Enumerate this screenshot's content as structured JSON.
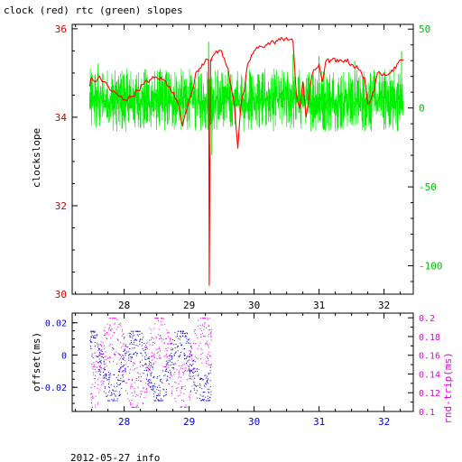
{
  "chart_data": [
    {
      "type": "line",
      "title": "clock (red) rtc (green) slopes",
      "ylabel": "clockslope",
      "x_ticks": [
        "28",
        "29",
        "30",
        "31",
        "32"
      ],
      "xlim": [
        27.2,
        32.45
      ],
      "ylim_left": [
        30,
        36.1
      ],
      "ylim_right": [
        -118,
        53
      ],
      "y_left_ticks": [
        "30",
        "32",
        "34",
        "36"
      ],
      "y_right_ticks": [
        "-100",
        "-50",
        "0",
        "50"
      ],
      "colors": {
        "axis": "#000000",
        "left_ticks": "#cc0000",
        "right_ticks": "#00bb00"
      },
      "series": [
        {
          "color": "#ff0000",
          "axis": "left",
          "x": [
            27.47,
            27.5,
            27.55,
            27.6,
            27.7,
            27.8,
            27.9,
            28.0,
            28.1,
            28.2,
            28.3,
            28.4,
            28.5,
            28.6,
            28.7,
            28.8,
            28.85,
            28.9,
            28.95,
            29.0,
            29.05,
            29.1,
            29.2,
            29.3,
            29.31,
            29.33,
            29.35,
            29.4,
            29.5,
            29.6,
            29.7,
            29.75,
            29.8,
            29.85,
            29.9,
            30.0,
            30.1,
            30.2,
            30.3,
            30.4,
            30.5,
            30.6,
            30.65,
            30.7,
            30.75,
            30.8,
            30.85,
            30.9,
            31.0,
            31.05,
            31.1,
            31.2,
            31.3,
            31.4,
            31.5,
            31.6,
            31.7,
            31.75,
            31.8,
            31.85,
            31.9,
            32.0,
            32.1,
            32.2,
            32.3
          ],
          "values": [
            34.7,
            34.9,
            34.8,
            34.9,
            34.8,
            34.6,
            34.5,
            34.4,
            34.45,
            34.6,
            34.75,
            34.85,
            34.9,
            34.85,
            34.7,
            34.4,
            34.2,
            33.8,
            34.1,
            34.4,
            34.6,
            35.0,
            35.2,
            35.3,
            30.2,
            35.3,
            35.35,
            35.45,
            35.5,
            35.1,
            34.2,
            33.3,
            34.3,
            34.6,
            35.2,
            35.5,
            35.6,
            35.65,
            35.7,
            35.75,
            35.8,
            35.7,
            34.5,
            34.2,
            34.8,
            34.0,
            34.5,
            35.0,
            35.2,
            34.8,
            35.25,
            35.3,
            35.25,
            35.3,
            35.2,
            35.1,
            34.9,
            34.3,
            34.4,
            34.6,
            35.0,
            35.0,
            35.0,
            35.2,
            35.3
          ]
        },
        {
          "color": "#00ee00",
          "axis": "right",
          "x_range": [
            27.47,
            32.3
          ],
          "values_band": [
            -15,
            25
          ],
          "spikes": [
            {
              "x": 27.6,
              "value": 28
            },
            {
              "x": 29.3,
              "value": 42
            },
            {
              "x": 29.35,
              "value": -30
            },
            {
              "x": 30.6,
              "value": 34
            },
            {
              "x": 31.0,
              "value": 33
            },
            {
              "x": 31.55,
              "value": 30
            },
            {
              "x": 32.27,
              "value": 36
            }
          ]
        }
      ]
    },
    {
      "type": "scatter",
      "ylabel_left": "offset(ms)",
      "ylabel_right": "rnd-trip(ms)",
      "x_ticks": [
        "28",
        "29",
        "30",
        "31",
        "32"
      ],
      "xlim": [
        27.2,
        32.45
      ],
      "ylim_left": [
        -0.035,
        0.026
      ],
      "ylim_right": [
        0.1,
        0.205
      ],
      "y_left_ticks": [
        "0.02",
        "0",
        "-0.02"
      ],
      "y_right_ticks": [
        "0.2",
        "0.18",
        "0.16",
        "0.14",
        "0.12",
        "0.1"
      ],
      "x_range_data": [
        27.47,
        29.33
      ],
      "colors": {
        "offset": "#0000cc",
        "rnd_trip": "#dd00dd"
      },
      "series": [
        {
          "name": "offset(ms)",
          "color": "#0000cc",
          "axis": "left",
          "band": [
            -0.028,
            0.015
          ]
        },
        {
          "name": "rnd-trip(ms)",
          "color": "#dd00dd",
          "axis": "right",
          "band": [
            0.105,
            0.2
          ]
        }
      ]
    }
  ],
  "footer": "2012-05-27 info"
}
